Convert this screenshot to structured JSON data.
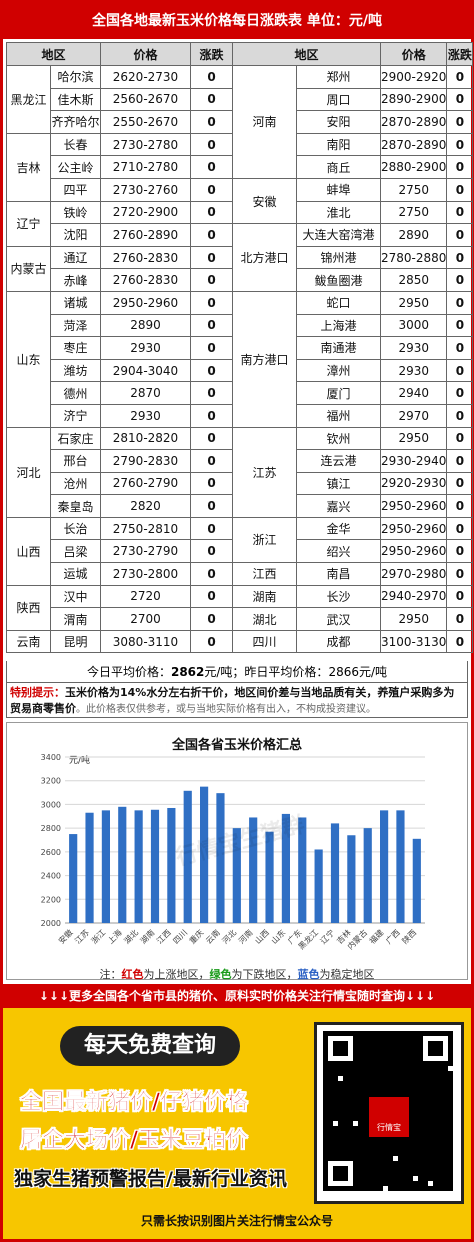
{
  "title": "全国各地最新玉米价格每日涨跌表   单位：元/吨",
  "headers": {
    "region": "地区",
    "price": "价格",
    "change": "涨跌"
  },
  "left_rows": [
    {
      "region": "黑龙江",
      "span": 3,
      "city": "哈尔滨",
      "price": "2620-2730",
      "change": "0"
    },
    {
      "city": "佳木斯",
      "price": "2560-2670",
      "change": "0"
    },
    {
      "city": "齐齐哈尔",
      "price": "2550-2670",
      "change": "0"
    },
    {
      "region": "吉林",
      "span": 3,
      "city": "长春",
      "price": "2730-2780",
      "change": "0"
    },
    {
      "city": "公主岭",
      "price": "2710-2780",
      "change": "0"
    },
    {
      "city": "四平",
      "price": "2730-2760",
      "change": "0"
    },
    {
      "region": "辽宁",
      "span": 2,
      "city": "铁岭",
      "price": "2720-2900",
      "change": "0"
    },
    {
      "city": "沈阳",
      "price": "2760-2890",
      "change": "0"
    },
    {
      "region": "内蒙古",
      "span": 2,
      "city": "通辽",
      "price": "2760-2830",
      "change": "0"
    },
    {
      "city": "赤峰",
      "price": "2760-2830",
      "change": "0"
    },
    {
      "region": "山东",
      "span": 6,
      "city": "诸城",
      "price": "2950-2960",
      "change": "0"
    },
    {
      "city": "菏泽",
      "price": "2890",
      "change": "0"
    },
    {
      "city": "枣庄",
      "price": "2930",
      "change": "0"
    },
    {
      "city": "潍坊",
      "price": "2904-3040",
      "change": "0"
    },
    {
      "city": "德州",
      "price": "2870",
      "change": "0"
    },
    {
      "city": "济宁",
      "price": "2930",
      "change": "0"
    },
    {
      "region": "河北",
      "span": 4,
      "city": "石家庄",
      "price": "2810-2820",
      "change": "0"
    },
    {
      "city": "邢台",
      "price": "2790-2830",
      "change": "0"
    },
    {
      "city": "沧州",
      "price": "2760-2790",
      "change": "0"
    },
    {
      "city": "秦皇岛",
      "price": "2820",
      "change": "0"
    },
    {
      "region": "山西",
      "span": 3,
      "city": "长治",
      "price": "2750-2810",
      "change": "0"
    },
    {
      "city": "吕梁",
      "price": "2730-2790",
      "change": "0"
    },
    {
      "city": "运城",
      "price": "2730-2800",
      "change": "0"
    },
    {
      "region": "陕西",
      "span": 2,
      "city": "汉中",
      "price": "2720",
      "change": "0"
    },
    {
      "city": "渭南",
      "price": "2700",
      "change": "0"
    },
    {
      "region": "云南",
      "span": 1,
      "city": "昆明",
      "price": "3080-3110",
      "change": "0"
    }
  ],
  "right_rows": [
    {
      "region": "河南",
      "span": 5,
      "city": "郑州",
      "price": "2900-2920",
      "change": "0"
    },
    {
      "city": "周口",
      "price": "2890-2900",
      "change": "0"
    },
    {
      "city": "安阳",
      "price": "2870-2890",
      "change": "0"
    },
    {
      "city": "南阳",
      "price": "2870-2890",
      "change": "0"
    },
    {
      "city": "商丘",
      "price": "2880-2900",
      "change": "0"
    },
    {
      "region": "安徽",
      "span": 2,
      "city": "蚌埠",
      "price": "2750",
      "change": "0"
    },
    {
      "city": "淮北",
      "price": "2750",
      "change": "0"
    },
    {
      "region": "北方港口",
      "span": 3,
      "city": "大连大窑湾港",
      "price": "2890",
      "change": "0"
    },
    {
      "city": "锦州港",
      "price": "2780-2880",
      "change": "0"
    },
    {
      "city": "鲅鱼圈港",
      "price": "2850",
      "change": "0"
    },
    {
      "region": "南方港口",
      "span": 6,
      "city": "蛇口",
      "price": "2950",
      "change": "0"
    },
    {
      "city": "上海港",
      "price": "3000",
      "change": "0"
    },
    {
      "city": "南通港",
      "price": "2930",
      "change": "0"
    },
    {
      "city": "漳州",
      "price": "2930",
      "change": "0"
    },
    {
      "city": "厦门",
      "price": "2940",
      "change": "0"
    },
    {
      "city": "福州",
      "price": "2970",
      "change": "0"
    },
    {
      "region": "江苏",
      "span": 4,
      "city": "钦州",
      "price": "2950",
      "change": "0"
    },
    {
      "city": "连云港",
      "price": "2930-2940",
      "change": "0"
    },
    {
      "city": "镇江",
      "price": "2920-2930",
      "change": "0"
    },
    {
      "city": "嘉兴",
      "price": "2950-2960",
      "change": "0"
    },
    {
      "region": "浙江",
      "span": 2,
      "city": "金华",
      "price": "2950-2960",
      "change": "0"
    },
    {
      "city": "绍兴",
      "price": "2950-2960",
      "change": "0"
    },
    {
      "region": "江西",
      "span": 1,
      "city": "南昌",
      "price": "2970-2980",
      "change": "0"
    },
    {
      "region": "湖南",
      "span": 1,
      "city": "长沙",
      "price": "2940-2970",
      "change": "0"
    },
    {
      "region": "湖北",
      "span": 1,
      "city": "武汉",
      "price": "2950",
      "change": "0"
    },
    {
      "region": "四川",
      "span": 1,
      "city": "成都",
      "price": "3100-3130",
      "change": "0"
    }
  ],
  "averages": {
    "today_label": "今日平均价格：",
    "today_value": "2862",
    "today_unit": "元/吨；",
    "yesterday_label": "昨日平均价格：",
    "yesterday_value": "2866元/吨"
  },
  "tip": {
    "label": "特别提示：",
    "text": "玉米价格为14%水分左右折干价，地区间价差与当地品质有关，养殖户采购多为贸易商零售价",
    "disclaimer": "。此价格表仅供参考，或与当地实际价格有出入，不构成投资建议。"
  },
  "chart_data": {
    "type": "bar",
    "title": "全国各省玉米价格汇总",
    "ylabel": "元/吨",
    "ylim": [
      2000,
      3400
    ],
    "yticks": [
      2000,
      2200,
      2400,
      2600,
      2800,
      3000,
      3200,
      3400
    ],
    "categories": [
      "安徽",
      "江苏",
      "浙江",
      "上海",
      "湖北",
      "湖南",
      "江西",
      "四川",
      "重庆",
      "云南",
      "河北",
      "河南",
      "山西",
      "山东",
      "广东",
      "黑龙江",
      "辽宁",
      "吉林",
      "内蒙古",
      "福建",
      "广西",
      "陕西"
    ],
    "values": [
      2750,
      2930,
      2950,
      2980,
      2950,
      2955,
      2970,
      3115,
      3150,
      3095,
      2800,
      2890,
      2770,
      2920,
      2890,
      2620,
      2840,
      2740,
      2800,
      2950,
      2950,
      2710
    ],
    "bar_color": "#2f6fc4",
    "grid": true,
    "watermark": "行情宝生猪群"
  },
  "legend_note": {
    "prefix": "注：",
    "red": "红色",
    "red_text": "为上涨地区，",
    "green": "绿色",
    "green_text": "为下跌地区，",
    "blue": "蓝色",
    "blue_text": "为稳定地区"
  },
  "banner": "↓↓↓更多全国各个省市县的猪价、原料实时价格关注行情宝随时查询↓↓↓",
  "promo": {
    "pill": "每天免费查询",
    "line1": "全国最新猪价/仔猪价格",
    "line2": "屠企大场价/玉米豆粕价",
    "line3": "独家生猪预警报告/最新行业资讯",
    "qr_caption": "只需长按识别图片关注行情宝公众号",
    "qr_logo": "行情宝"
  }
}
